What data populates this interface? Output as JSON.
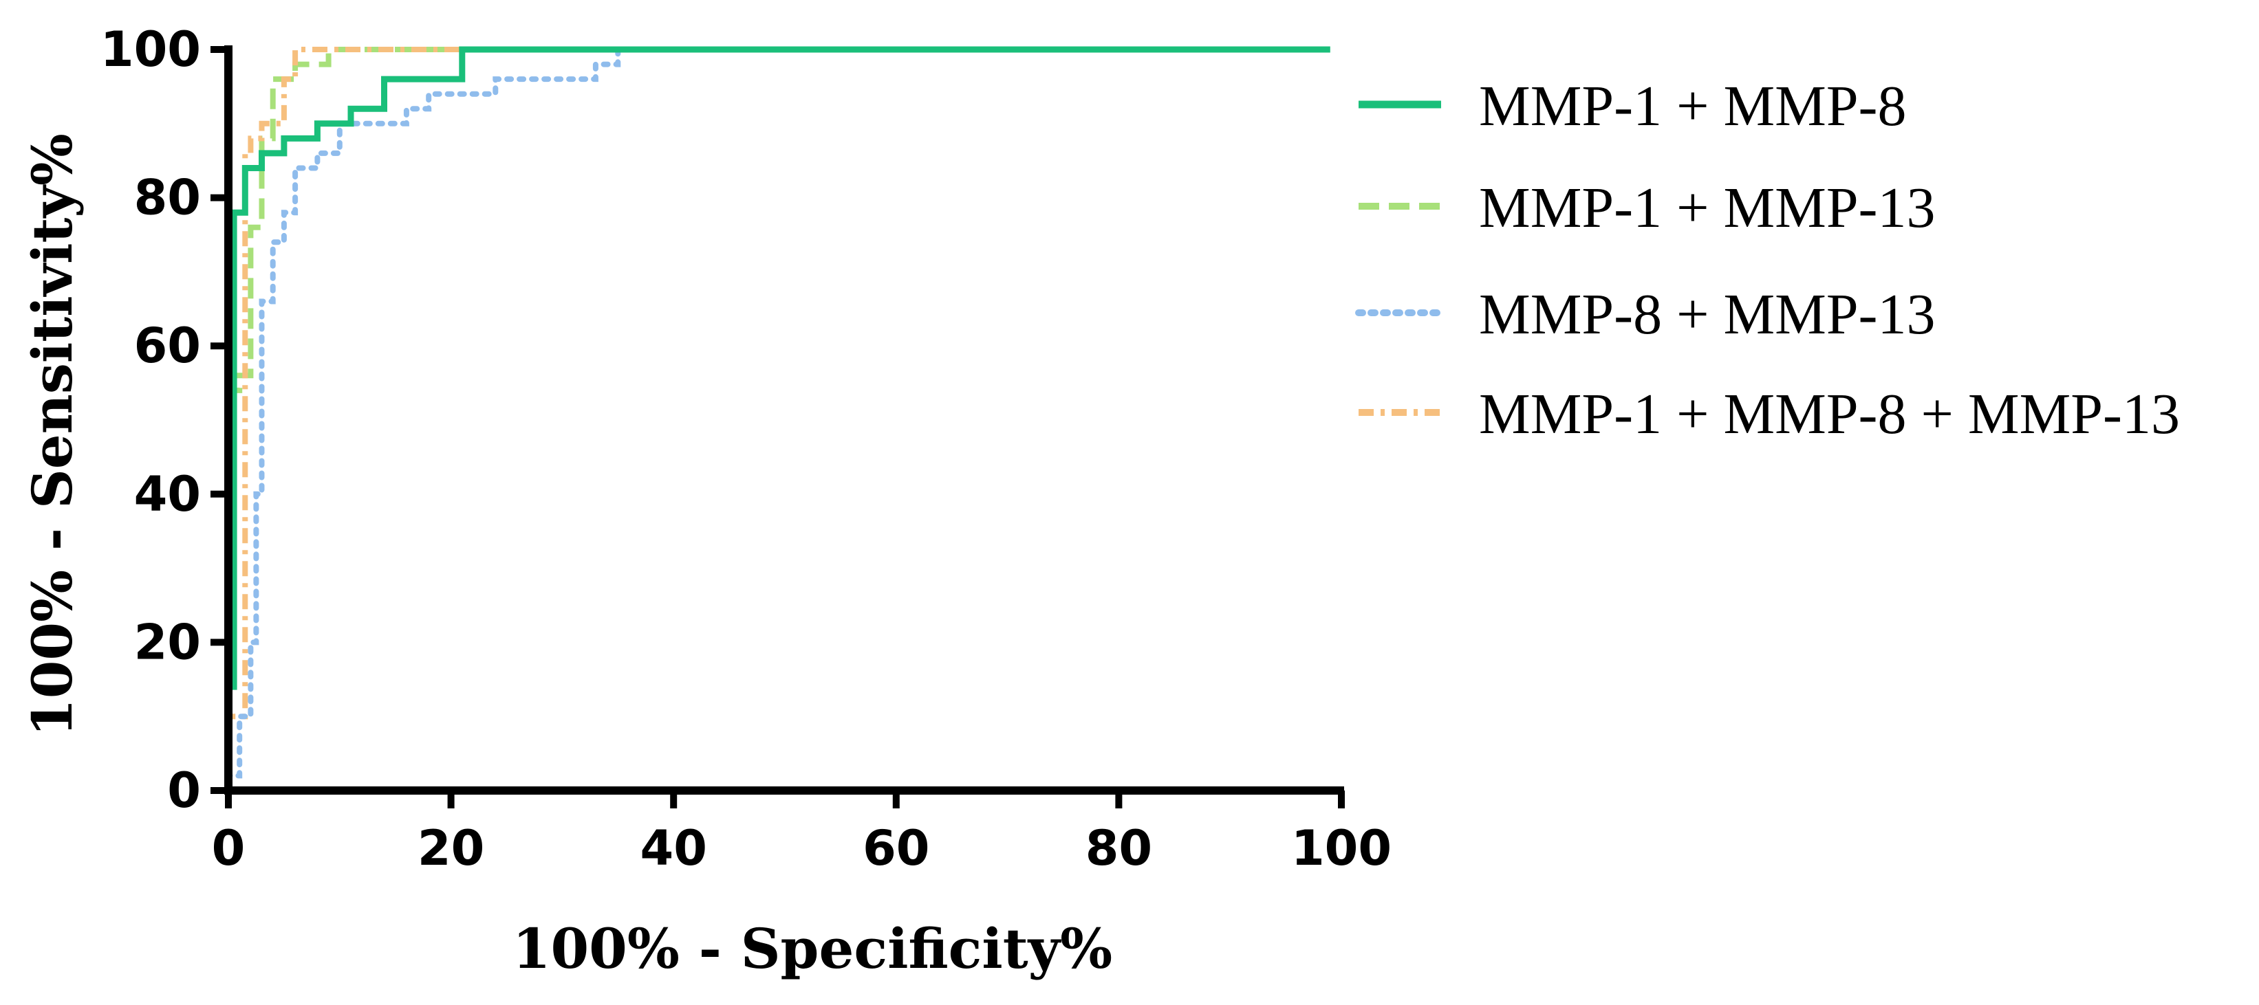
{
  "chart_data": {
    "type": "line",
    "title": "",
    "xlabel": "100% - Specificity%",
    "ylabel": "100% - Sensitivity%",
    "xlim": [
      0,
      100
    ],
    "ylim": [
      0,
      100
    ],
    "x_ticks": [
      "0",
      "20",
      "40",
      "60",
      "80",
      "100"
    ],
    "y_ticks": [
      "0",
      "20",
      "40",
      "60",
      "80",
      "100"
    ],
    "grid": false,
    "legend_position": "right",
    "series": [
      {
        "name": "MMP-1 + MMP-8",
        "color": "#1abf7a",
        "line_style": "solid",
        "points": [
          [
            0,
            0
          ],
          [
            0,
            14
          ],
          [
            0.5,
            14
          ],
          [
            0.5,
            55
          ],
          [
            0.5,
            78
          ],
          [
            1.5,
            78
          ],
          [
            1.5,
            84
          ],
          [
            3,
            84
          ],
          [
            3,
            86
          ],
          [
            5,
            86
          ],
          [
            5,
            88
          ],
          [
            8,
            88
          ],
          [
            8,
            90
          ],
          [
            11,
            90
          ],
          [
            11,
            92
          ],
          [
            14,
            92
          ],
          [
            14,
            96
          ],
          [
            21,
            96
          ],
          [
            21,
            100
          ],
          [
            99,
            100
          ]
        ]
      },
      {
        "name": "MMP-1 +  MMP-13",
        "color": "#a8e07a",
        "line_style": "dashed",
        "points": [
          [
            0,
            0
          ],
          [
            0,
            54
          ],
          [
            1,
            54
          ],
          [
            1,
            56
          ],
          [
            2,
            56
          ],
          [
            2,
            76
          ],
          [
            3,
            76
          ],
          [
            3,
            88
          ],
          [
            4,
            88
          ],
          [
            4,
            96
          ],
          [
            6,
            96
          ],
          [
            6,
            98
          ],
          [
            9,
            98
          ],
          [
            9,
            100
          ],
          [
            99,
            100
          ]
        ]
      },
      {
        "name": "MMP-8 +  MMP-13",
        "color": "#8fbcec",
        "line_style": "dotted",
        "points": [
          [
            0,
            0
          ],
          [
            0,
            2
          ],
          [
            1,
            2
          ],
          [
            1,
            10
          ],
          [
            2,
            10
          ],
          [
            2,
            20
          ],
          [
            2.5,
            20
          ],
          [
            2.5,
            40
          ],
          [
            3,
            40
          ],
          [
            3,
            66
          ],
          [
            4,
            66
          ],
          [
            4,
            74
          ],
          [
            5,
            74
          ],
          [
            5,
            78
          ],
          [
            6,
            78
          ],
          [
            6,
            84
          ],
          [
            8,
            84
          ],
          [
            8,
            86
          ],
          [
            10,
            86
          ],
          [
            10,
            90
          ],
          [
            16,
            90
          ],
          [
            16,
            92
          ],
          [
            18,
            92
          ],
          [
            18,
            94
          ],
          [
            24,
            94
          ],
          [
            24,
            96
          ],
          [
            33,
            96
          ],
          [
            33,
            98
          ],
          [
            35,
            98
          ],
          [
            35,
            100
          ],
          [
            99,
            100
          ]
        ]
      },
      {
        "name": "MMP-1 + MMP-8 + MMP-13",
        "color": "#f6bf7e",
        "line_style": "dashdot",
        "points": [
          [
            0,
            0
          ],
          [
            0,
            10
          ],
          [
            1.5,
            10
          ],
          [
            1.5,
            86
          ],
          [
            2,
            86
          ],
          [
            2,
            88
          ],
          [
            3,
            88
          ],
          [
            3,
            90
          ],
          [
            5,
            90
          ],
          [
            5,
            96
          ],
          [
            6,
            96
          ],
          [
            6,
            100
          ],
          [
            99,
            100
          ]
        ]
      }
    ]
  }
}
